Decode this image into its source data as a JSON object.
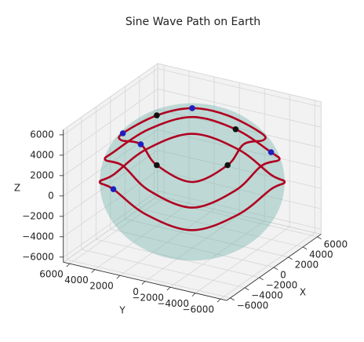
{
  "chart_data": {
    "type": "line3d",
    "title": "Sine Wave Path on Earth",
    "xlabel": "X",
    "ylabel": "Y",
    "zlabel": "Z",
    "xlim": [
      -6500,
      6500
    ],
    "ylim": [
      -6500,
      6500
    ],
    "zlim": [
      -6500,
      6500
    ],
    "xticks": [
      {
        "value": -6000,
        "label": "−6000"
      },
      {
        "value": -4000,
        "label": "−4000"
      },
      {
        "value": -2000,
        "label": "−2000"
      },
      0,
      2000,
      4000,
      6000
    ],
    "yticks": [
      {
        "value": -6000,
        "label": "−6000"
      },
      {
        "value": -4000,
        "label": "−4000"
      },
      {
        "value": -2000,
        "label": "−2000"
      },
      0,
      2000,
      4000,
      6000
    ],
    "zticks": [
      {
        "value": -6000,
        "label": "−6000"
      },
      {
        "value": -4000,
        "label": "−4000"
      },
      {
        "value": -2000,
        "label": "−2000"
      },
      0,
      2000,
      4000,
      6000
    ],
    "grid": true,
    "sphere": {
      "radius": 6371,
      "color": "#5fa8a0"
    },
    "series": [
      {
        "color": "#b00020",
        "x": [
          6371,
          5433,
          3186,
          0,
          -3186,
          -5433,
          -6371,
          -5433,
          -3186,
          0,
          3186,
          5433
        ],
        "y": [
          0,
          3137,
          5517,
          6274,
          5517,
          3137,
          0,
          -3137,
          -5517,
          -6274,
          -5517,
          -3137
        ],
        "z": [
          0,
          1106,
          0,
          -1106,
          0,
          1106,
          0,
          -1106,
          0,
          1106,
          0,
          -1106
        ]
      },
      {
        "color": "#b00020",
        "x": [
          5987,
          4778,
          2994,
          0,
          -2994,
          -4778,
          -5987,
          -5433,
          -2994,
          0,
          2994,
          5433
        ],
        "y": [
          0,
          2759,
          5185,
          6274,
          5185,
          2759,
          0,
          -3137,
          -5185,
          -5517,
          -5185,
          -3137
        ],
        "z": [
          2179,
          3186,
          2179,
          1106,
          2179,
          3186,
          2179,
          1106,
          2179,
          3186,
          2179,
          1106
        ]
      },
      {
        "color": "#b00020",
        "x": [
          4880,
          3546,
          2440,
          0,
          -2440,
          -3546,
          -4880,
          -4778,
          -2440,
          0,
          2440,
          4778
        ],
        "y": [
          0,
          2048,
          4226,
          5517,
          4226,
          2048,
          0,
          -2759,
          -4226,
          -4095,
          -4226,
          -2759
        ],
        "z": [
          4095,
          4880,
          4095,
          3186,
          4095,
          4880,
          4095,
          3186,
          4095,
          4880,
          4095,
          3186
        ]
      }
    ],
    "points": [
      {
        "color": "#111111",
        "x": [
          2440,
          -2440,
          5987,
          -4880
        ],
        "y": [
          4226,
          -4226,
          0,
          0
        ],
        "z": [
          4095,
          4095,
          2179,
          4095
        ]
      },
      {
        "color": "#1f1fbf",
        "x": [
          0,
          -3546,
          3546,
          5433,
          -5433
        ],
        "y": [
          5517,
          2048,
          2048,
          -3137,
          3137
        ],
        "z": [
          3186,
          4880,
          4880,
          1106,
          1106
        ]
      }
    ]
  }
}
